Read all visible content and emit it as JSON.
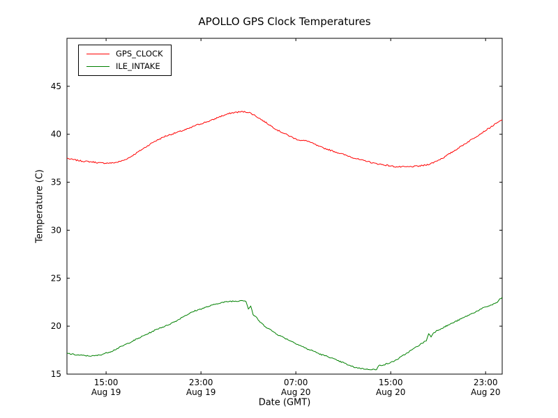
{
  "title": "APOLLO GPS Clock Temperatures",
  "chart_data": {
    "type": "line",
    "title": "APOLLO GPS Clock Temperatures",
    "xlabel": "Date (GMT)",
    "ylabel": "Temperature (C)",
    "x_unit": "hours since Aug 19 00:00 GMT",
    "xlim": [
      11.7,
      48.4
    ],
    "ylim": [
      15,
      50
    ],
    "grid": false,
    "legend_position": "upper left",
    "y_ticks": [
      15,
      20,
      25,
      30,
      35,
      40,
      45
    ],
    "x_ticks": [
      {
        "x": 15,
        "time": "15:00",
        "date": "Aug 19"
      },
      {
        "x": 23,
        "time": "23:00",
        "date": "Aug 19"
      },
      {
        "x": 31,
        "time": "07:00",
        "date": "Aug 20"
      },
      {
        "x": 39,
        "time": "15:00",
        "date": "Aug 20"
      },
      {
        "x": 47,
        "time": "23:00",
        "date": "Aug 20"
      }
    ],
    "series": [
      {
        "name": "GPS_CLOCK",
        "color": "#ff0000",
        "noise": 0.07,
        "x": [
          11.7,
          12,
          12.5,
          13,
          13.5,
          14,
          14.5,
          15,
          15.5,
          16,
          16.5,
          17,
          17.5,
          18,
          18.5,
          19,
          19.5,
          20,
          20.5,
          21,
          21.5,
          22,
          22.5,
          23,
          23.5,
          24,
          24.5,
          25,
          25.5,
          26,
          26.5,
          27,
          27.5,
          28,
          28.5,
          29,
          29.5,
          30,
          30.5,
          31,
          31.5,
          32,
          32.5,
          33,
          33.5,
          34,
          34.5,
          35,
          35.5,
          36,
          36.5,
          37,
          37.5,
          38,
          38.5,
          39,
          39.5,
          40,
          40.5,
          41,
          41.5,
          42,
          42.5,
          43,
          43.5,
          44,
          44.5,
          45,
          45.5,
          46,
          46.5,
          47,
          47.5,
          48,
          48.4
        ],
        "y": [
          37.5,
          37.4,
          37.3,
          37.2,
          37.15,
          37.1,
          37.0,
          37.0,
          37.0,
          37.1,
          37.3,
          37.6,
          38.0,
          38.4,
          38.8,
          39.2,
          39.5,
          39.8,
          40.0,
          40.2,
          40.4,
          40.6,
          40.9,
          41.1,
          41.3,
          41.5,
          41.8,
          42.0,
          42.2,
          42.3,
          42.35,
          42.3,
          42.0,
          41.6,
          41.2,
          40.8,
          40.4,
          40.1,
          39.8,
          39.5,
          39.35,
          39.3,
          39.0,
          38.7,
          38.5,
          38.3,
          38.1,
          37.9,
          37.7,
          37.5,
          37.3,
          37.2,
          37.0,
          36.9,
          36.8,
          36.7,
          36.6,
          36.6,
          36.6,
          36.65,
          36.7,
          36.8,
          37.0,
          37.3,
          37.6,
          38.0,
          38.4,
          38.8,
          39.2,
          39.6,
          40.0,
          40.4,
          40.8,
          41.2,
          41.5
        ]
      },
      {
        "name": "ILE_INTAKE",
        "color": "#008000",
        "noise": 0.06,
        "x": [
          11.7,
          12,
          12.5,
          13,
          13.5,
          14,
          14.5,
          15,
          15.5,
          16,
          16.5,
          17,
          17.5,
          18,
          18.5,
          19,
          19.5,
          20,
          20.5,
          21,
          21.5,
          22,
          22.5,
          23,
          23.5,
          24,
          24.5,
          25,
          25.5,
          26,
          26.5,
          26.8,
          27,
          27.2,
          27.4,
          27.6,
          28,
          28.5,
          29,
          29.5,
          30,
          30.5,
          31,
          31.5,
          32,
          32.5,
          33,
          33.5,
          34,
          34.5,
          35,
          35.5,
          36,
          36.5,
          37,
          37.5,
          37.8,
          38,
          38.5,
          39,
          39.5,
          40,
          40.5,
          41,
          41.5,
          42,
          42.2,
          42.4,
          42.6,
          43,
          43.5,
          44,
          44.5,
          45,
          45.5,
          46,
          46.5,
          47,
          47.5,
          48,
          48.2,
          48.4
        ],
        "y": [
          17.2,
          17.1,
          17.0,
          16.95,
          16.9,
          16.9,
          17.0,
          17.2,
          17.4,
          17.7,
          18.0,
          18.3,
          18.6,
          18.9,
          19.2,
          19.5,
          19.8,
          20.0,
          20.3,
          20.6,
          21.0,
          21.3,
          21.6,
          21.8,
          22.0,
          22.2,
          22.4,
          22.5,
          22.6,
          22.6,
          22.7,
          22.6,
          21.8,
          22.1,
          21.2,
          21.0,
          20.4,
          19.9,
          19.5,
          19.1,
          18.8,
          18.5,
          18.2,
          17.9,
          17.6,
          17.4,
          17.1,
          16.9,
          16.7,
          16.4,
          16.2,
          15.9,
          15.7,
          15.6,
          15.5,
          15.5,
          15.45,
          15.9,
          16.0,
          16.2,
          16.5,
          16.9,
          17.3,
          17.7,
          18.1,
          18.5,
          19.2,
          18.9,
          19.3,
          19.6,
          19.9,
          20.2,
          20.5,
          20.8,
          21.1,
          21.4,
          21.7,
          22.0,
          22.2,
          22.5,
          22.8,
          23.0
        ]
      }
    ]
  }
}
